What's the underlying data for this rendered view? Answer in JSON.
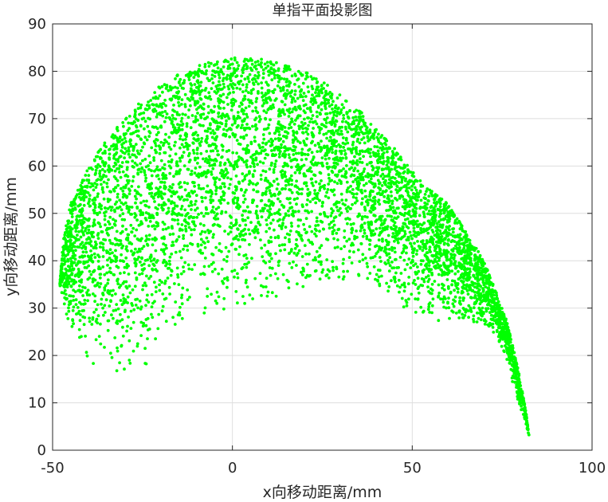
{
  "chart_data": {
    "type": "scatter",
    "title": "单指平面投影图",
    "xlabel": "x向移动距离/mm",
    "ylabel": "y向移动距离/mm",
    "xlim": [
      -50,
      100
    ],
    "ylim": [
      0,
      90
    ],
    "xticks": [
      -50,
      0,
      50,
      100
    ],
    "yticks": [
      0,
      10,
      20,
      30,
      40,
      50,
      60,
      70,
      80,
      90
    ],
    "grid": true,
    "marker_color": "#00ff00",
    "series": [
      {
        "point_count": 6000,
        "region": {
          "description": "dense crescent/arch of points",
          "outer_boundary": [
            [
              -48,
              35
            ],
            [
              -47,
              45
            ],
            [
              -45,
              52
            ],
            [
              -40,
              60
            ],
            [
              -35,
              66
            ],
            [
              -30,
              70
            ],
            [
              -25,
              74
            ],
            [
              -20,
              77
            ],
            [
              -15,
              79.5
            ],
            [
              -10,
              81
            ],
            [
              -5,
              82.3
            ],
            [
              0,
              83
            ],
            [
              5,
              83
            ],
            [
              10,
              82.5
            ],
            [
              15,
              81.5
            ],
            [
              20,
              80
            ],
            [
              25,
              78
            ],
            [
              30,
              75
            ],
            [
              35,
              72
            ],
            [
              40,
              68
            ],
            [
              45,
              64
            ],
            [
              50,
              59
            ],
            [
              55,
              55
            ],
            [
              60,
              52
            ],
            [
              65,
              46
            ],
            [
              70,
              40
            ],
            [
              73,
              34
            ],
            [
              76,
              28
            ],
            [
              78,
              22
            ],
            [
              80,
              15
            ],
            [
              81.5,
              9
            ],
            [
              82.5,
              3
            ]
          ],
          "inner_boundary": [
            [
              -48,
              35
            ],
            [
              -45,
              24
            ],
            [
              -40,
              19
            ],
            [
              -35,
              16
            ],
            [
              -31,
              14
            ],
            [
              -28,
              14
            ],
            [
              -25,
              17
            ],
            [
              -20,
              21
            ],
            [
              -15,
              24.5
            ],
            [
              -10,
              28
            ],
            [
              -5,
              29.5
            ],
            [
              0,
              29.5
            ],
            [
              5,
              29
            ],
            [
              10,
              30
            ],
            [
              15,
              32
            ],
            [
              20,
              33.5
            ],
            [
              25,
              35
            ],
            [
              30,
              36
            ],
            [
              35,
              35.5
            ],
            [
              40,
              34
            ],
            [
              45,
              31
            ],
            [
              50,
              29
            ],
            [
              55,
              27
            ],
            [
              60,
              27
            ],
            [
              65,
              27
            ],
            [
              70,
              26
            ],
            [
              74,
              23
            ],
            [
              77,
              17
            ],
            [
              79,
              11
            ],
            [
              82.5,
              3
            ]
          ]
        }
      }
    ]
  }
}
